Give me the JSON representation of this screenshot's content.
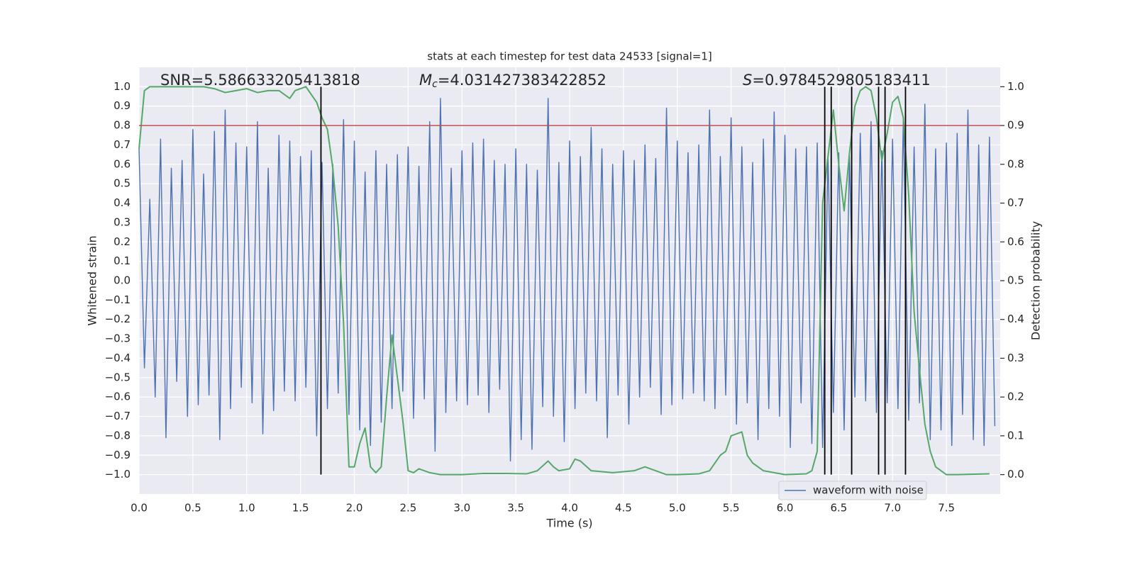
{
  "chart_data": {
    "type": "line",
    "title": "stats at each timestep for test data 24533 [signal=1]",
    "xlabel": "Time (s)",
    "ylabel": "Whitened strain",
    "y2label": "Detection probability",
    "annotations": [
      {
        "text": "SNR=5.586633205413818"
      },
      {
        "symbol": "M",
        "subscript": "c",
        "text": "=4.031427383422852"
      },
      {
        "symbol": "S",
        "text": "=0.9784529805183411"
      }
    ],
    "xlim": [
      0,
      8
    ],
    "xticks": [
      {
        "value": 0,
        "label": "0.0"
      },
      0.5,
      {
        "value": 1,
        "label": "1.0"
      },
      1.5,
      {
        "value": 2,
        "label": "2.0"
      },
      2.5,
      {
        "value": 3,
        "label": "3.0"
      },
      3.5,
      {
        "value": 4,
        "label": "4.0"
      },
      4.5,
      {
        "value": 5,
        "label": "5.0"
      },
      5.5,
      {
        "value": 6,
        "label": "6.0"
      },
      6.5,
      {
        "value": 7,
        "label": "7.0"
      },
      7.5
    ],
    "ylim": [
      -1.1,
      1.1
    ],
    "yticks": [
      {
        "value": -1,
        "label": "−1.0"
      },
      {
        "value": -0.9,
        "label": "−0.9"
      },
      {
        "value": -0.8,
        "label": "−0.8"
      },
      {
        "value": -0.7,
        "label": "−0.7"
      },
      {
        "value": -0.6,
        "label": "−0.6"
      },
      {
        "value": -0.5,
        "label": "−0.5"
      },
      {
        "value": -0.4,
        "label": "−0.4"
      },
      {
        "value": -0.3,
        "label": "−0.3"
      },
      {
        "value": -0.2,
        "label": "−0.2"
      },
      {
        "value": -0.1,
        "label": "−0.1"
      },
      {
        "value": 0,
        "label": "0.0"
      },
      0.1,
      0.2,
      0.3,
      0.4,
      0.5,
      0.6,
      0.7,
      0.8,
      0.9,
      {
        "value": 1,
        "label": "1.0"
      }
    ],
    "y2lim": [
      -0.05,
      1.05
    ],
    "y2ticks": [
      {
        "value": 0,
        "label": "0.0"
      },
      0.1,
      0.2,
      0.3,
      0.4,
      0.5,
      0.6,
      0.7,
      0.8,
      0.9,
      {
        "value": 1,
        "label": "1.0"
      }
    ],
    "grid": true,
    "legend": "lower right",
    "series": [
      {
        "name": "waveform with noise",
        "color": "#4c72b0",
        "x": [
          0,
          0.05,
          0.1,
          0.15,
          0.2,
          0.25,
          0.3,
          0.35,
          0.4,
          0.45,
          0.5,
          0.55,
          0.6,
          0.65,
          0.7,
          0.75,
          0.8,
          0.85,
          0.9,
          0.95,
          1,
          1.05,
          1.1,
          1.15,
          1.2,
          1.25,
          1.3,
          1.35,
          1.4,
          1.45,
          1.5,
          1.55,
          1.6,
          1.65,
          1.7,
          1.75,
          1.8,
          1.85,
          1.9,
          1.95,
          2,
          2.05,
          2.1,
          2.15,
          2.2,
          2.25,
          2.3,
          2.35,
          2.4,
          2.45,
          2.5,
          2.55,
          2.6,
          2.65,
          2.7,
          2.75,
          2.8,
          2.85,
          2.9,
          2.95,
          3,
          3.05,
          3.1,
          3.15,
          3.2,
          3.25,
          3.3,
          3.35,
          3.4,
          3.45,
          3.5,
          3.55,
          3.6,
          3.65,
          3.7,
          3.75,
          3.8,
          3.85,
          3.9,
          3.95,
          4,
          4.05,
          4.1,
          4.15,
          4.2,
          4.25,
          4.3,
          4.35,
          4.4,
          4.45,
          4.5,
          4.55,
          4.6,
          4.65,
          4.7,
          4.75,
          4.8,
          4.85,
          4.9,
          4.95,
          5,
          5.05,
          5.1,
          5.15,
          5.2,
          5.25,
          5.3,
          5.35,
          5.4,
          5.45,
          5.5,
          5.55,
          5.6,
          5.65,
          5.7,
          5.75,
          5.8,
          5.85,
          5.9,
          5.95,
          6,
          6.05,
          6.1,
          6.15,
          6.2,
          6.25,
          6.3,
          6.35,
          6.4,
          6.45,
          6.5,
          6.55,
          6.6,
          6.65,
          6.7,
          6.75,
          6.8,
          6.85,
          6.9,
          6.95,
          7,
          7.05,
          7.1,
          7.15,
          7.2,
          7.25,
          7.3,
          7.35,
          7.4,
          7.45,
          7.5,
          7.55,
          7.6,
          7.65,
          7.7,
          7.75,
          7.8,
          7.85,
          7.9,
          7.95
        ],
        "values": [
          0.68,
          -0.45,
          0.42,
          -0.6,
          0.73,
          -0.81,
          0.58,
          -0.52,
          0.62,
          -0.7,
          0.78,
          -0.64,
          0.55,
          -0.59,
          0.77,
          -0.82,
          0.88,
          -0.66,
          0.71,
          -0.55,
          0.69,
          -0.63,
          0.82,
          -0.79,
          0.58,
          -0.67,
          0.75,
          -0.57,
          0.72,
          -0.62,
          0.64,
          -0.55,
          0.67,
          -0.8,
          0.61,
          -0.66,
          0.6,
          -0.58,
          0.83,
          -0.69,
          0.72,
          -0.77,
          0.56,
          -0.85,
          0.67,
          -0.73,
          0.6,
          -0.66,
          0.65,
          -0.57,
          0.69,
          -0.71,
          0.59,
          -0.61,
          0.82,
          -0.88,
          0.94,
          -0.68,
          0.58,
          -0.62,
          0.67,
          -0.64,
          0.71,
          -0.59,
          0.73,
          -0.68,
          0.62,
          -0.56,
          0.6,
          -0.93,
          0.68,
          -0.82,
          0.6,
          -0.87,
          0.57,
          -0.65,
          0.94,
          -0.7,
          0.61,
          -0.83,
          0.72,
          -0.66,
          0.64,
          -0.58,
          0.79,
          -0.62,
          0.68,
          -0.81,
          0.6,
          -0.59,
          0.67,
          -0.74,
          0.62,
          -0.6,
          0.7,
          -0.55,
          0.63,
          -0.69,
          0.89,
          -0.64,
          0.72,
          -0.61,
          0.66,
          -0.58,
          0.7,
          -0.62,
          0.88,
          -0.66,
          0.64,
          -0.59,
          0.84,
          -0.74,
          0.69,
          -0.63,
          0.61,
          -0.82,
          0.73,
          -0.66,
          0.87,
          -0.7,
          0.75,
          -0.86,
          0.68,
          -0.63,
          0.69,
          -0.84,
          0.71,
          -0.86,
          0.65,
          -0.68,
          0.66,
          -0.77,
          0.64,
          -0.6,
          0.76,
          -0.62,
          0.82,
          -0.68,
          0.67,
          -0.63,
          0.73,
          -0.66,
          0.84,
          -0.72,
          0.69,
          -0.63,
          0.91,
          -0.82,
          0.68,
          -0.77,
          0.71,
          -0.85,
          0.76,
          -0.69,
          0.88,
          -0.82,
          0.7,
          -0.85,
          0.74,
          -0.75
        ]
      },
      {
        "color": "#55a868",
        "axis": "y2",
        "x": [
          0,
          0.05,
          0.1,
          0.2,
          0.3,
          0.4,
          0.5,
          0.6,
          0.7,
          0.8,
          0.9,
          1,
          1.1,
          1.2,
          1.3,
          1.4,
          1.45,
          1.55,
          1.6,
          1.65,
          1.7,
          1.75,
          1.8,
          1.85,
          1.9,
          1.95,
          2,
          2.05,
          2.1,
          2.15,
          2.2,
          2.25,
          2.3,
          2.35,
          2.4,
          2.45,
          2.5,
          2.55,
          2.6,
          2.7,
          2.8,
          2.9,
          3,
          3.2,
          3.4,
          3.6,
          3.7,
          3.8,
          3.85,
          3.9,
          4,
          4.05,
          4.1,
          4.2,
          4.4,
          4.6,
          4.7,
          4.8,
          4.9,
          5,
          5.2,
          5.3,
          5.4,
          5.45,
          5.5,
          5.6,
          5.65,
          5.7,
          5.8,
          5.9,
          6,
          6.2,
          6.25,
          6.3,
          6.35,
          6.45,
          6.5,
          6.55,
          6.6,
          6.65,
          6.7,
          6.75,
          6.8,
          6.85,
          6.9,
          6.95,
          7,
          7.05,
          7.1,
          7.15,
          7.2,
          7.25,
          7.3,
          7.35,
          7.4,
          7.5,
          7.6,
          7.9
        ],
        "values": [
          0.84,
          0.99,
          1,
          1,
          1,
          1,
          1,
          1,
          0.995,
          0.985,
          0.99,
          0.995,
          0.985,
          0.99,
          0.99,
          0.97,
          0.99,
          1,
          0.98,
          0.96,
          0.92,
          0.89,
          0.79,
          0.64,
          0.39,
          0.02,
          0.02,
          0.08,
          0.12,
          0.02,
          0.005,
          0.02,
          0.2,
          0.36,
          0.25,
          0.14,
          0.01,
          0.005,
          0.015,
          0.005,
          0,
          0,
          0,
          0.003,
          0.003,
          0.002,
          0.01,
          0.035,
          0.02,
          0.01,
          0.015,
          0.04,
          0.035,
          0.01,
          0.005,
          0.01,
          0.02,
          0.01,
          0,
          0,
          0.002,
          0.01,
          0.05,
          0.06,
          0.1,
          0.11,
          0.05,
          0.03,
          0.01,
          0.005,
          0,
          0.002,
          0.01,
          0.06,
          0.7,
          0.94,
          0.8,
          0.68,
          0.83,
          0.95,
          0.99,
          1,
          0.99,
          0.92,
          0.81,
          0.88,
          0.96,
          0.975,
          0.92,
          0.72,
          0.42,
          0.27,
          0.13,
          0.06,
          0.02,
          0,
          0,
          0.002
        ]
      }
    ],
    "vlines": {
      "color": "#000000",
      "x": [
        1.69,
        6.37,
        6.43,
        6.62,
        6.87,
        6.93,
        7.12
      ],
      "ymin": -1,
      "ymax": 1
    },
    "hline": {
      "color": "#c44e52",
      "y2": 0.9
    }
  }
}
